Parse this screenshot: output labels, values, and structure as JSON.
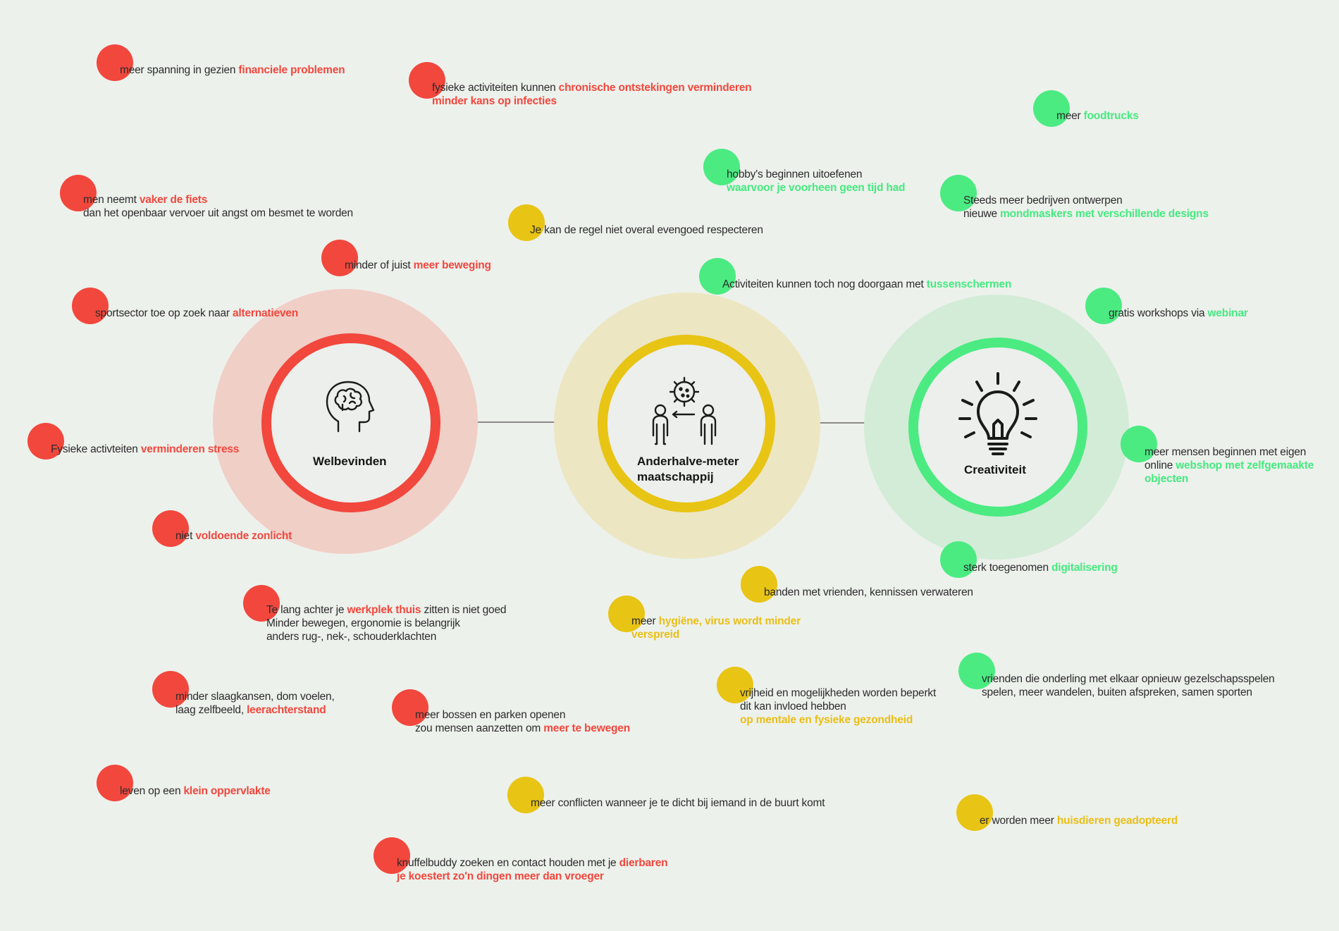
{
  "colors": {
    "welbevinden": "#f2473d",
    "anderhalve": "#e8c414",
    "creativiteit": "#4beb82",
    "background": "#edf1ec"
  },
  "hubs": {
    "welbevinden": {
      "label": "Welbevinden",
      "icon": "brain-head-icon"
    },
    "anderhalve": {
      "label": "Anderhalve-meter\nmaatschappij",
      "icon": "social-distance-icon"
    },
    "creativiteit": {
      "label": "Creativiteit",
      "icon": "lightbulb-icon"
    }
  },
  "notes": {
    "n1": {
      "color": "red",
      "parts": [
        [
          "meer spanning in gezien ",
          ""
        ],
        [
          "financiele problemen",
          "hl"
        ]
      ]
    },
    "n2": {
      "color": "red",
      "lines": [
        [
          [
            "fysieke activiteiten kunnen  ",
            ""
          ],
          [
            "chronische ontstekingen verminderen",
            "hl"
          ]
        ],
        [
          [
            "minder kans op infecties",
            "hl"
          ]
        ]
      ]
    },
    "n3": {
      "color": "red",
      "lines": [
        [
          [
            "men neemt ",
            ""
          ],
          [
            "vaker de fiets",
            "hl"
          ]
        ],
        [
          [
            "dan het openbaar vervoer uit angst om besmet te worden",
            ""
          ]
        ]
      ]
    },
    "n4": {
      "color": "red",
      "parts": [
        [
          "minder of juist ",
          ""
        ],
        [
          "meer beweging",
          "hl"
        ]
      ]
    },
    "n5": {
      "color": "red",
      "parts": [
        [
          "sportsector toe op zoek naar ",
          ""
        ],
        [
          "alternatieven",
          "hl"
        ]
      ]
    },
    "n6": {
      "color": "red",
      "parts": [
        [
          "Fysieke activteiten ",
          ""
        ],
        [
          "verminderen stress",
          "hl"
        ]
      ]
    },
    "n7": {
      "color": "red",
      "parts": [
        [
          "niet ",
          ""
        ],
        [
          "voldoende zonlicht",
          "hl"
        ]
      ]
    },
    "n8": {
      "color": "red",
      "lines": [
        [
          [
            "Te lang achter je ",
            ""
          ],
          [
            "werkplek thuis",
            "hl"
          ],
          [
            " zitten is niet goed",
            ""
          ]
        ],
        [
          [
            "Minder bewegen, ergonomie is belangrijk",
            ""
          ]
        ],
        [
          [
            "anders rug-, nek-, schouderklachten",
            ""
          ]
        ]
      ]
    },
    "n9": {
      "color": "red",
      "lines": [
        [
          [
            "minder slaagkansen, dom voelen,",
            ""
          ]
        ],
        [
          [
            "laag zelfbeeld, ",
            ""
          ],
          [
            "leerachterstand",
            "hl"
          ]
        ]
      ]
    },
    "n10": {
      "color": "red",
      "lines": [
        [
          [
            "meer bossen en parken openen",
            ""
          ]
        ],
        [
          [
            "zou mensen aanzetten om ",
            ""
          ],
          [
            "meer te bewegen",
            "hl"
          ]
        ]
      ]
    },
    "n11": {
      "color": "red",
      "parts": [
        [
          "leven op een ",
          ""
        ],
        [
          "klein oppervlakte",
          "hl"
        ]
      ]
    },
    "n12": {
      "color": "red",
      "lines": [
        [
          [
            "knuffelbuddy zoeken en contact houden met je  ",
            ""
          ],
          [
            "dierbaren",
            "hl"
          ]
        ],
        [
          [
            "je koestert zo'n dingen meer dan vroeger",
            "hl"
          ]
        ]
      ]
    },
    "y1": {
      "color": "yellow",
      "parts": [
        [
          "Je kan de regel niet overal evengoed respecteren",
          ""
        ]
      ]
    },
    "y2": {
      "color": "yellow",
      "parts": [
        [
          "banden met vrienden, kennissen verwateren",
          ""
        ]
      ]
    },
    "y3": {
      "color": "yellow",
      "lines": [
        [
          [
            "meer ",
            ""
          ],
          [
            "hygiëne, virus wordt minder",
            "hl"
          ]
        ],
        [
          [
            "verspreid",
            "hl"
          ]
        ]
      ]
    },
    "y4": {
      "color": "yellow",
      "lines": [
        [
          [
            "vrijheid en mogelijkheden worden beperkt",
            ""
          ]
        ],
        [
          [
            "dit kan invloed hebben",
            ""
          ]
        ],
        [
          [
            "op mentale en fysieke gezondheid",
            "hl"
          ]
        ]
      ]
    },
    "y5": {
      "color": "yellow",
      "parts": [
        [
          "meer conflicten wanneer je te dicht bij iemand in de buurt komt",
          ""
        ]
      ]
    },
    "y6": {
      "color": "yellow",
      "parts": [
        [
          "er worden meer ",
          ""
        ],
        [
          "huisdieren geadopteerd",
          "hl"
        ]
      ]
    },
    "g1": {
      "color": "green",
      "parts": [
        [
          "meer  ",
          ""
        ],
        [
          "foodtrucks",
          "hl"
        ]
      ]
    },
    "g2": {
      "color": "green",
      "lines": [
        [
          [
            "hobby's beginnen uitoefenen",
            ""
          ]
        ],
        [
          [
            "waarvoor je voorheen geen tijd had",
            "hl"
          ]
        ]
      ]
    },
    "g3": {
      "color": "green",
      "lines": [
        [
          [
            "Steeds meer bedrijven ontwerpen",
            ""
          ]
        ],
        [
          [
            "nieuwe ",
            ""
          ],
          [
            "mondmaskers met verschillende designs",
            "hl"
          ]
        ]
      ]
    },
    "g4": {
      "color": "green",
      "parts": [
        [
          "Activiteiten kunnen toch nog doorgaan met ",
          ""
        ],
        [
          "tussenschermen",
          "hl"
        ]
      ]
    },
    "g5": {
      "color": "green",
      "parts": [
        [
          "gratis workshops via  ",
          ""
        ],
        [
          "webinar",
          "hl"
        ]
      ]
    },
    "g6": {
      "color": "green",
      "lines": [
        [
          [
            "meer  mensen beginnen met eigen",
            ""
          ]
        ],
        [
          [
            "online ",
            ""
          ],
          [
            "webshop met zelfgemaakte",
            "hl"
          ]
        ],
        [
          [
            "objecten",
            "hl"
          ]
        ]
      ]
    },
    "g7": {
      "color": "green",
      "parts": [
        [
          "sterk toegenomen ",
          ""
        ],
        [
          "digitalisering",
          "hl"
        ]
      ]
    },
    "g8": {
      "color": "green",
      "lines": [
        [
          [
            "vrienden die onderling met elkaar opnieuw gezelschapsspelen",
            ""
          ]
        ],
        [
          [
            "spelen, meer wandelen, buiten afspreken, samen sporten",
            ""
          ]
        ]
      ]
    }
  }
}
